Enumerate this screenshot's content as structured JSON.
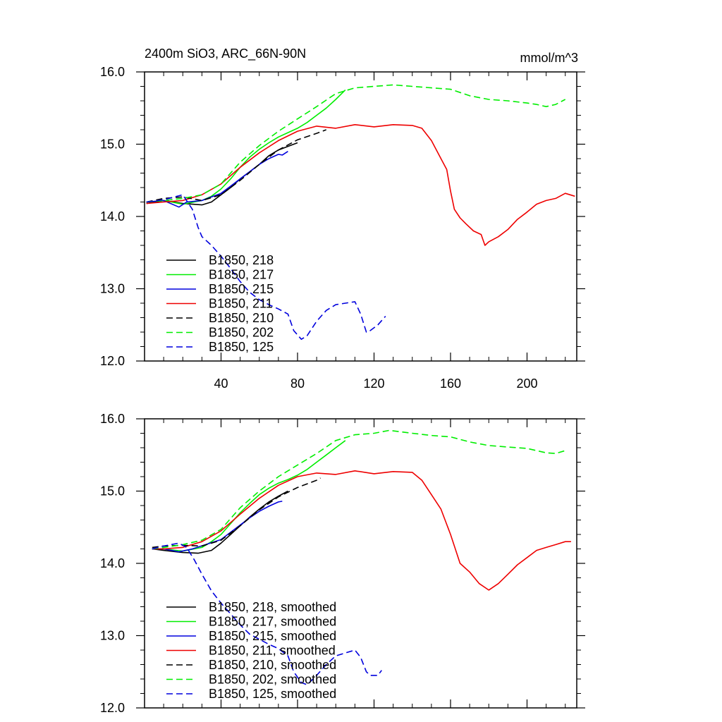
{
  "header": {
    "title": "2400m SiO3, ARC_66N-90N",
    "units": "mmol/m^3"
  },
  "chart_data": [
    {
      "type": "line",
      "xlim": [
        0,
        226
      ],
      "ylim": [
        12.0,
        16.0
      ],
      "xticks": [
        40,
        80,
        120,
        160,
        200
      ],
      "xtick_labels": [
        "40",
        "80",
        "120",
        "160",
        "200"
      ],
      "yticks": [
        12.0,
        13.0,
        14.0,
        15.0,
        16.0
      ],
      "ytick_labels": [
        "12.0",
        "13.0",
        "14.0",
        "15.0",
        "16.0"
      ],
      "series": [
        {
          "name": "B1850, 218",
          "color": "#000000",
          "dash": "solid",
          "x": [
            1,
            10,
            20,
            30,
            35,
            40,
            45,
            50,
            55,
            60,
            65,
            70,
            75,
            80
          ],
          "y": [
            14.18,
            14.22,
            14.18,
            14.16,
            14.2,
            14.3,
            14.4,
            14.52,
            14.62,
            14.72,
            14.84,
            14.92,
            14.97,
            15.02
          ]
        },
        {
          "name": "B1850, 217",
          "color": "#00ee00",
          "dash": "solid",
          "x": [
            1,
            10,
            20,
            30,
            35,
            40,
            45,
            50,
            55,
            60,
            65,
            70,
            75,
            80,
            85,
            90,
            95,
            100,
            105
          ],
          "y": [
            14.2,
            14.22,
            14.17,
            14.22,
            14.28,
            14.38,
            14.52,
            14.68,
            14.82,
            14.93,
            15.02,
            15.1,
            15.16,
            15.22,
            15.3,
            15.4,
            15.5,
            15.62,
            15.75
          ]
        },
        {
          "name": "B1850, 215",
          "color": "#0000dd",
          "dash": "solid",
          "x": [
            1,
            10,
            18,
            22,
            30,
            40,
            45,
            50,
            55,
            60,
            65,
            70,
            72,
            75
          ],
          "y": [
            14.2,
            14.22,
            14.13,
            14.2,
            14.22,
            14.32,
            14.42,
            14.52,
            14.62,
            14.72,
            14.8,
            14.86,
            14.85,
            14.9
          ]
        },
        {
          "name": "B1850, 211",
          "color": "#ee0000",
          "dash": "solid",
          "x": [
            1,
            10,
            20,
            30,
            40,
            50,
            60,
            70,
            80,
            90,
            100,
            110,
            120,
            130,
            140,
            145,
            150,
            155,
            158,
            160,
            162,
            165,
            168,
            172,
            176,
            178,
            180,
            185,
            190,
            195,
            200,
            205,
            210,
            215,
            220,
            225
          ],
          "y": [
            14.18,
            14.2,
            14.22,
            14.3,
            14.45,
            14.68,
            14.88,
            15.05,
            15.18,
            15.25,
            15.22,
            15.27,
            15.24,
            15.27,
            15.26,
            15.22,
            15.05,
            14.8,
            14.65,
            14.35,
            14.1,
            13.98,
            13.9,
            13.8,
            13.75,
            13.6,
            13.65,
            13.72,
            13.82,
            13.96,
            14.06,
            14.17,
            14.22,
            14.25,
            14.32,
            14.28
          ]
        },
        {
          "name": "B1850, 210",
          "color": "#000000",
          "dash": "dashed",
          "x": [
            1,
            10,
            20,
            30,
            40,
            50,
            60,
            70,
            80,
            90,
            95
          ],
          "y": [
            14.2,
            14.25,
            14.27,
            14.22,
            14.3,
            14.5,
            14.72,
            14.92,
            15.06,
            15.15,
            15.2
          ]
        },
        {
          "name": "B1850, 202",
          "color": "#00ee00",
          "dash": "dashed",
          "x": [
            1,
            10,
            20,
            30,
            40,
            50,
            60,
            70,
            80,
            90,
            100,
            110,
            120,
            130,
            140,
            150,
            160,
            170,
            180,
            190,
            200,
            205,
            210,
            215,
            220
          ],
          "y": [
            14.2,
            14.22,
            14.25,
            14.3,
            14.45,
            14.75,
            14.98,
            15.18,
            15.35,
            15.52,
            15.7,
            15.78,
            15.8,
            15.82,
            15.8,
            15.78,
            15.76,
            15.67,
            15.62,
            15.6,
            15.57,
            15.55,
            15.52,
            15.55,
            15.62
          ]
        },
        {
          "name": "B1850, 125",
          "color": "#0000dd",
          "dash": "dashed",
          "x": [
            1,
            10,
            20,
            25,
            28,
            30,
            35,
            40,
            45,
            50,
            55,
            60,
            65,
            70,
            75,
            78,
            82,
            85,
            90,
            95,
            100,
            105,
            110,
            113,
            116,
            118,
            122,
            126
          ],
          "y": [
            14.2,
            14.23,
            14.3,
            14.1,
            13.85,
            13.72,
            13.6,
            13.45,
            13.28,
            13.1,
            12.95,
            12.85,
            12.78,
            12.72,
            12.65,
            12.42,
            12.3,
            12.35,
            12.55,
            12.7,
            12.78,
            12.8,
            12.82,
            12.65,
            12.4,
            12.42,
            12.5,
            12.62
          ]
        }
      ]
    },
    {
      "type": "line",
      "xlim": [
        0,
        226
      ],
      "ylim": [
        12.0,
        16.0
      ],
      "xticks": [
        40,
        80,
        120,
        160,
        200
      ],
      "xtick_labels": [],
      "yticks": [
        12.0,
        13.0,
        14.0,
        15.0,
        16.0
      ],
      "ytick_labels": [
        "12.0",
        "13.0",
        "14.0",
        "15.0",
        "16.0"
      ],
      "series": [
        {
          "name": "B1850, 218, smoothed",
          "color": "#000000",
          "dash": "solid",
          "x": [
            4,
            10,
            20,
            28,
            35,
            40,
            45,
            50,
            55,
            60,
            65,
            70,
            75
          ],
          "y": [
            14.2,
            14.18,
            14.15,
            14.14,
            14.18,
            14.28,
            14.4,
            14.52,
            14.64,
            14.75,
            14.85,
            14.93,
            15.0
          ]
        },
        {
          "name": "B1850, 217, smoothed",
          "color": "#00ee00",
          "dash": "solid",
          "x": [
            4,
            10,
            20,
            30,
            35,
            40,
            45,
            50,
            55,
            60,
            65,
            70,
            75,
            80,
            85,
            90,
            95,
            100,
            105
          ],
          "y": [
            14.2,
            14.2,
            14.17,
            14.22,
            14.3,
            14.4,
            14.55,
            14.7,
            14.83,
            14.95,
            15.04,
            15.11,
            15.16,
            15.22,
            15.3,
            15.4,
            15.5,
            15.6,
            15.7
          ]
        },
        {
          "name": "B1850, 215, smoothed",
          "color": "#0000dd",
          "dash": "solid",
          "x": [
            4,
            10,
            18,
            25,
            32,
            40,
            45,
            50,
            55,
            60,
            65,
            70,
            72
          ],
          "y": [
            14.2,
            14.2,
            14.16,
            14.2,
            14.26,
            14.33,
            14.43,
            14.53,
            14.63,
            14.72,
            14.79,
            14.85,
            14.86
          ]
        },
        {
          "name": "B1850, 211, smoothed",
          "color": "#ee0000",
          "dash": "solid",
          "x": [
            4,
            10,
            20,
            30,
            40,
            50,
            60,
            70,
            80,
            90,
            100,
            110,
            120,
            130,
            140,
            145,
            150,
            155,
            160,
            165,
            170,
            175,
            180,
            185,
            190,
            195,
            200,
            205,
            210,
            215,
            220,
            223
          ],
          "y": [
            14.2,
            14.2,
            14.22,
            14.3,
            14.45,
            14.68,
            14.9,
            15.08,
            15.2,
            15.25,
            15.23,
            15.28,
            15.24,
            15.27,
            15.26,
            15.15,
            14.95,
            14.75,
            14.4,
            14.0,
            13.88,
            13.72,
            13.63,
            13.72,
            13.85,
            13.98,
            14.08,
            14.18,
            14.22,
            14.26,
            14.3,
            14.3
          ]
        },
        {
          "name": "B1850, 210, smoothed",
          "color": "#000000",
          "dash": "dashed",
          "x": [
            4,
            10,
            20,
            30,
            40,
            50,
            60,
            70,
            80,
            90,
            92
          ],
          "y": [
            14.22,
            14.24,
            14.25,
            14.24,
            14.32,
            14.52,
            14.74,
            14.92,
            15.05,
            15.15,
            15.18
          ]
        },
        {
          "name": "B1850, 202, smoothed",
          "color": "#00ee00",
          "dash": "dashed",
          "x": [
            4,
            10,
            20,
            30,
            40,
            50,
            60,
            70,
            80,
            90,
            100,
            110,
            120,
            128,
            140,
            150,
            160,
            170,
            180,
            190,
            200,
            205,
            210,
            215,
            220
          ],
          "y": [
            14.2,
            14.22,
            14.26,
            14.32,
            14.47,
            14.77,
            15.0,
            15.2,
            15.36,
            15.52,
            15.7,
            15.78,
            15.8,
            15.84,
            15.8,
            15.77,
            15.75,
            15.68,
            15.63,
            15.61,
            15.59,
            15.56,
            15.53,
            15.52,
            15.56
          ]
        },
        {
          "name": "B1850, 125, smoothed",
          "color": "#0000dd",
          "dash": "dashed",
          "x": [
            4,
            10,
            18,
            22,
            26,
            30,
            35,
            40,
            45,
            50,
            55,
            60,
            65,
            70,
            75,
            78,
            82,
            85,
            90,
            95,
            100,
            105,
            110,
            113,
            116,
            118,
            122,
            124
          ],
          "y": [
            14.2,
            14.24,
            14.28,
            14.22,
            14.05,
            13.85,
            13.62,
            13.45,
            13.3,
            13.15,
            13.02,
            12.95,
            12.88,
            12.82,
            12.72,
            12.5,
            12.35,
            12.32,
            12.45,
            12.6,
            12.72,
            12.76,
            12.8,
            12.7,
            12.5,
            12.45,
            12.45,
            12.52
          ]
        }
      ]
    }
  ]
}
